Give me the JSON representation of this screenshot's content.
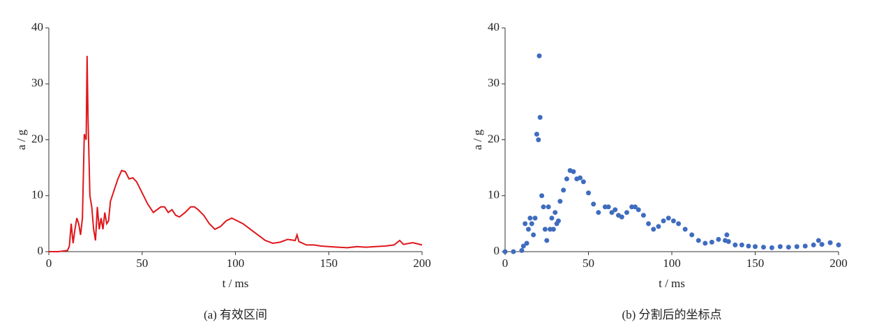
{
  "chart_data": [
    {
      "type": "line",
      "caption": "(a)  有效区间",
      "xlabel": "t / ms",
      "ylabel": "a / g",
      "color": "#e0161b",
      "xlim": [
        0,
        200
      ],
      "ylim": [
        0,
        40
      ],
      "xticks": [
        0,
        50,
        100,
        150,
        200
      ],
      "yticks": [
        0,
        10,
        20,
        30,
        40
      ],
      "x": [
        0,
        5,
        10,
        11,
        12,
        13,
        14,
        15,
        16,
        17,
        18,
        19,
        20,
        20.5,
        21,
        22,
        23,
        24,
        25,
        26,
        27,
        28,
        29,
        30,
        31,
        32,
        33,
        35,
        37,
        39,
        41,
        43,
        45,
        47,
        50,
        53,
        56,
        60,
        62,
        64,
        66,
        68,
        70,
        73,
        76,
        78,
        80,
        83,
        86,
        89,
        92,
        95,
        98,
        101,
        104,
        108,
        112,
        116,
        120,
        124,
        128,
        132,
        133,
        134,
        138,
        142,
        146,
        150,
        155,
        160,
        165,
        170,
        175,
        180,
        185,
        188,
        190,
        195,
        200
      ],
      "values": [
        0,
        0,
        0.2,
        1,
        5,
        1.5,
        4,
        6,
        5,
        3,
        6,
        21,
        20,
        35,
        24,
        10,
        8,
        4,
        2,
        8,
        4,
        6,
        4,
        7,
        5,
        5.5,
        9,
        11,
        13,
        14.5,
        14.3,
        13,
        13.2,
        12.5,
        10.5,
        8.5,
        7,
        8,
        8,
        7,
        7.5,
        6.5,
        6.2,
        7,
        8,
        8,
        7.5,
        6.5,
        5,
        4,
        4.5,
        5.5,
        6,
        5.5,
        5,
        4,
        3,
        2,
        1.5,
        1.7,
        2.2,
        2,
        3,
        1.8,
        1.2,
        1.2,
        1,
        0.9,
        0.8,
        0.7,
        0.9,
        0.8,
        0.9,
        1,
        1.2,
        2,
        1.3,
        1.6,
        1.2
      ]
    },
    {
      "type": "scatter",
      "caption": "(b)  分割后的坐标点",
      "xlabel": "t / ms",
      "ylabel": "a / g",
      "color": "#3f6cbf",
      "xlim": [
        0,
        200
      ],
      "ylim": [
        0,
        40
      ],
      "xticks": [
        0,
        50,
        100,
        150,
        200
      ],
      "yticks": [
        0,
        10,
        20,
        30,
        40
      ],
      "x": [
        0,
        5,
        10,
        11,
        12,
        13,
        14,
        15,
        16,
        17,
        18,
        19,
        20,
        20.5,
        21,
        22,
        23,
        24,
        25,
        26,
        27,
        28,
        29,
        30,
        31,
        32,
        33,
        35,
        37,
        39,
        41,
        43,
        45,
        47,
        50,
        53,
        56,
        60,
        62,
        64,
        66,
        68,
        70,
        73,
        76,
        78,
        80,
        83,
        86,
        89,
        92,
        95,
        98,
        101,
        104,
        108,
        112,
        116,
        120,
        124,
        128,
        132,
        133,
        134,
        138,
        142,
        146,
        150,
        155,
        160,
        165,
        170,
        175,
        180,
        185,
        188,
        190,
        195,
        200
      ],
      "values": [
        0,
        0,
        0.2,
        1,
        5,
        1.5,
        4,
        6,
        5,
        3,
        6,
        21,
        20,
        35,
        24,
        10,
        8,
        4,
        2,
        8,
        4,
        6,
        4,
        7,
        5,
        5.5,
        9,
        11,
        13,
        14.5,
        14.3,
        13,
        13.2,
        12.5,
        10.5,
        8.5,
        7,
        8,
        8,
        7,
        7.5,
        6.5,
        6.2,
        7,
        8,
        8,
        7.5,
        6.5,
        5,
        4,
        4.5,
        5.5,
        6,
        5.5,
        5,
        4,
        3,
        2,
        1.5,
        1.7,
        2.2,
        2,
        3,
        1.8,
        1.2,
        1.2,
        1,
        0.9,
        0.8,
        0.7,
        0.9,
        0.8,
        0.9,
        1,
        1.2,
        2,
        1.3,
        1.6,
        1.2
      ]
    }
  ]
}
